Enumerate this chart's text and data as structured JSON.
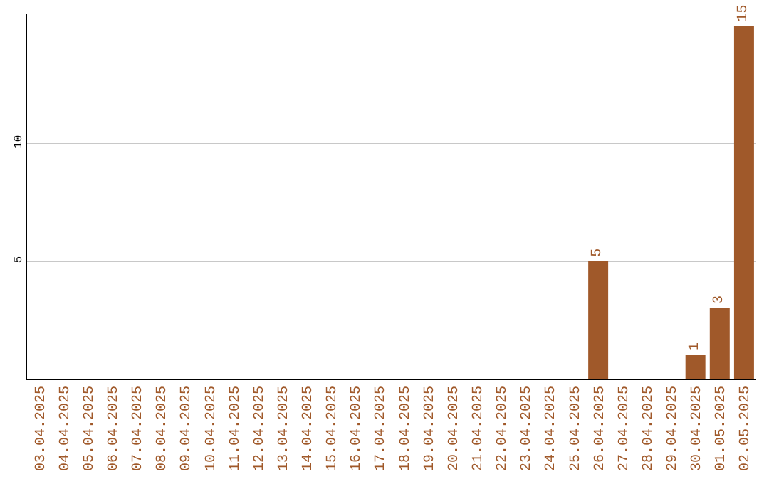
{
  "chart_data": {
    "type": "bar",
    "categories": [
      "03.04.2025",
      "04.04.2025",
      "05.04.2025",
      "06.04.2025",
      "07.04.2025",
      "08.04.2025",
      "09.04.2025",
      "10.04.2025",
      "11.04.2025",
      "12.04.2025",
      "13.04.2025",
      "14.04.2025",
      "15.04.2025",
      "16.04.2025",
      "17.04.2025",
      "18.04.2025",
      "19.04.2025",
      "20.04.2025",
      "21.04.2025",
      "22.04.2025",
      "23.04.2025",
      "24.04.2025",
      "25.04.2025",
      "26.04.2025",
      "27.04.2025",
      "28.04.2025",
      "29.04.2025",
      "30.04.2025",
      "01.05.2025",
      "02.05.2025"
    ],
    "values": [
      0,
      0,
      0,
      0,
      0,
      0,
      0,
      0,
      0,
      0,
      0,
      0,
      0,
      0,
      0,
      0,
      0,
      0,
      0,
      0,
      0,
      0,
      0,
      5,
      0,
      0,
      0,
      1,
      3,
      15
    ],
    "value_labels": [
      null,
      null,
      null,
      null,
      null,
      null,
      null,
      null,
      null,
      null,
      null,
      null,
      null,
      null,
      null,
      null,
      null,
      null,
      null,
      null,
      null,
      null,
      null,
      "5",
      null,
      null,
      null,
      "1",
      "3",
      "15"
    ],
    "color": "#a0592a",
    "ylim": [
      0,
      15.5
    ],
    "yticks": [
      5,
      10
    ],
    "grid": "y",
    "legend": false
  }
}
